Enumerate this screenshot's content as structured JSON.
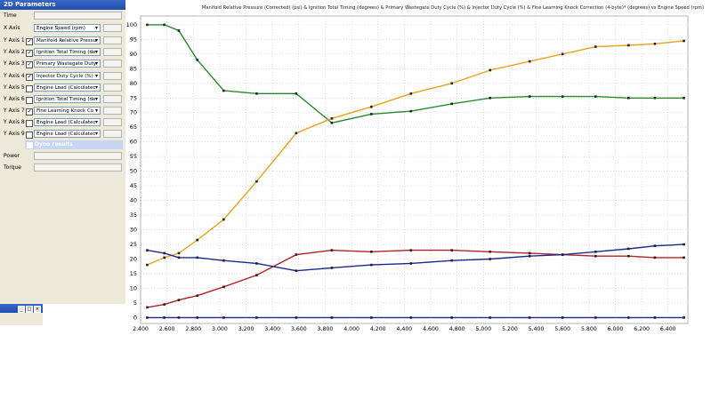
{
  "panel": {
    "title": "2D Parameters",
    "time_label": "Time",
    "x_axis": {
      "label": "X Axis",
      "value": "Engine Speed (rpm)"
    },
    "y_axes": [
      {
        "label": "Y Axis 1",
        "checked": true,
        "value": "Manifold Relative Pressu"
      },
      {
        "label": "Y Axis 2",
        "checked": true,
        "value": "Ignition Total Timing (de"
      },
      {
        "label": "Y Axis 3",
        "checked": true,
        "value": "Primary Wastegate Duty"
      },
      {
        "label": "Y Axis 4",
        "checked": true,
        "value": "Injector Duty Cycle (%)"
      },
      {
        "label": "Y Axis 5",
        "checked": false,
        "value": "Engine Load (Calculatec"
      },
      {
        "label": "Y Axis 6",
        "checked": false,
        "value": "Ignition Total Timing (de"
      },
      {
        "label": "Y Axis 7",
        "checked": true,
        "value": "Fine Learning Knock Co"
      },
      {
        "label": "Y Axis 8",
        "checked": false,
        "value": "Engine Load (Calculatec"
      },
      {
        "label": "Y Axis 9",
        "checked": false,
        "value": "Engine Load (Calculatec"
      }
    ],
    "dyno_label": "Dyno results",
    "power_label": "Power",
    "torque_label": "Torque"
  },
  "chart_data": {
    "type": "line",
    "title": "Manifold Relative Pressure (Corrected) (psi) & Ignition Total Timing (degrees) & Primary Wastegate Duty Cycle (%) & Injector Duty Cycle (%) & Fine Learning Knock Correction (4-byte)* (degrees) vs Engine Speed (rpm)",
    "xlim": [
      2400,
      6550
    ],
    "ylim": [
      -2,
      103
    ],
    "x_ticks": [
      "2,400",
      "2,600",
      "2,800",
      "3,000",
      "3,200",
      "3,400",
      "3,600",
      "3,800",
      "4,000",
      "4,200",
      "4,400",
      "4,600",
      "4,800",
      "5,000",
      "5,200",
      "5,400",
      "5,600",
      "5,800",
      "6,000",
      "6,200",
      "6,400"
    ],
    "x_tick_values": [
      2400,
      2600,
      2800,
      3000,
      3200,
      3400,
      3600,
      3800,
      4000,
      4200,
      4400,
      4600,
      4800,
      5000,
      5200,
      5400,
      5600,
      5800,
      6000,
      6200,
      6400
    ],
    "y_ticks": [
      "0",
      "5",
      "10",
      "15",
      "20",
      "25",
      "30",
      "35",
      "40",
      "45",
      "50",
      "55",
      "60",
      "65",
      "70",
      "75",
      "80",
      "85",
      "90",
      "95",
      "100"
    ],
    "y_tick_values": [
      0,
      5,
      10,
      15,
      20,
      25,
      30,
      35,
      40,
      45,
      50,
      55,
      60,
      65,
      70,
      75,
      80,
      85,
      90,
      95,
      100
    ],
    "grid": true,
    "series": [
      {
        "color": "#2a8a2a",
        "x": [
          2450,
          2580,
          2690,
          2830,
          3030,
          3280,
          3580,
          3850,
          4150,
          4450,
          4760,
          5050,
          5350,
          5600,
          5850,
          6100,
          6300,
          6520
        ],
        "y": [
          100,
          100,
          98,
          88,
          77.5,
          76.5,
          76.5,
          66.5,
          69.5,
          70.5,
          73,
          75,
          75.5,
          75.5,
          75.5,
          75,
          75,
          75
        ]
      },
      {
        "color": "#e8a11e",
        "x": [
          2450,
          2580,
          2690,
          2830,
          3030,
          3280,
          3580,
          3850,
          4150,
          4450,
          4760,
          5050,
          5350,
          5600,
          5850,
          6100,
          6300,
          6520
        ],
        "y": [
          18,
          20.5,
          22,
          26.5,
          33.5,
          46.5,
          63,
          68,
          72,
          76.5,
          80,
          84.5,
          87.5,
          90,
          92.5,
          93,
          93.5,
          94.5
        ]
      },
      {
        "color": "#b5202a",
        "x": [
          2450,
          2580,
          2690,
          2830,
          3030,
          3280,
          3580,
          3850,
          4150,
          4450,
          4760,
          5050,
          5350,
          5600,
          5850,
          6100,
          6300,
          6520
        ],
        "y": [
          3.5,
          4.5,
          6,
          7.5,
          10.5,
          14.5,
          21.5,
          23,
          22.5,
          23,
          23,
          22.5,
          22,
          21.5,
          21,
          21,
          20.5,
          20.5
        ]
      },
      {
        "color": "#1a2890",
        "x": [
          2450,
          2580,
          2690,
          2830,
          3030,
          3280,
          3580,
          3850,
          4150,
          4450,
          4760,
          5050,
          5350,
          5600,
          5850,
          6100,
          6300,
          6520
        ],
        "y": [
          23,
          22,
          20.5,
          20.5,
          19.5,
          18.5,
          16,
          17,
          18,
          18.5,
          19.5,
          20,
          21,
          21.5,
          22.5,
          23.5,
          24.5,
          25
        ]
      },
      {
        "color": "#1a2890",
        "x": [
          2450,
          2580,
          2690,
          2830,
          3030,
          3280,
          3580,
          3850,
          4150,
          4450,
          4760,
          5050,
          5350,
          5600,
          5850,
          6100,
          6300,
          6520
        ],
        "y": [
          0,
          0,
          0,
          0,
          0,
          0,
          0,
          0,
          0,
          0,
          0,
          0,
          0,
          0,
          0,
          0,
          0,
          0
        ]
      }
    ]
  }
}
